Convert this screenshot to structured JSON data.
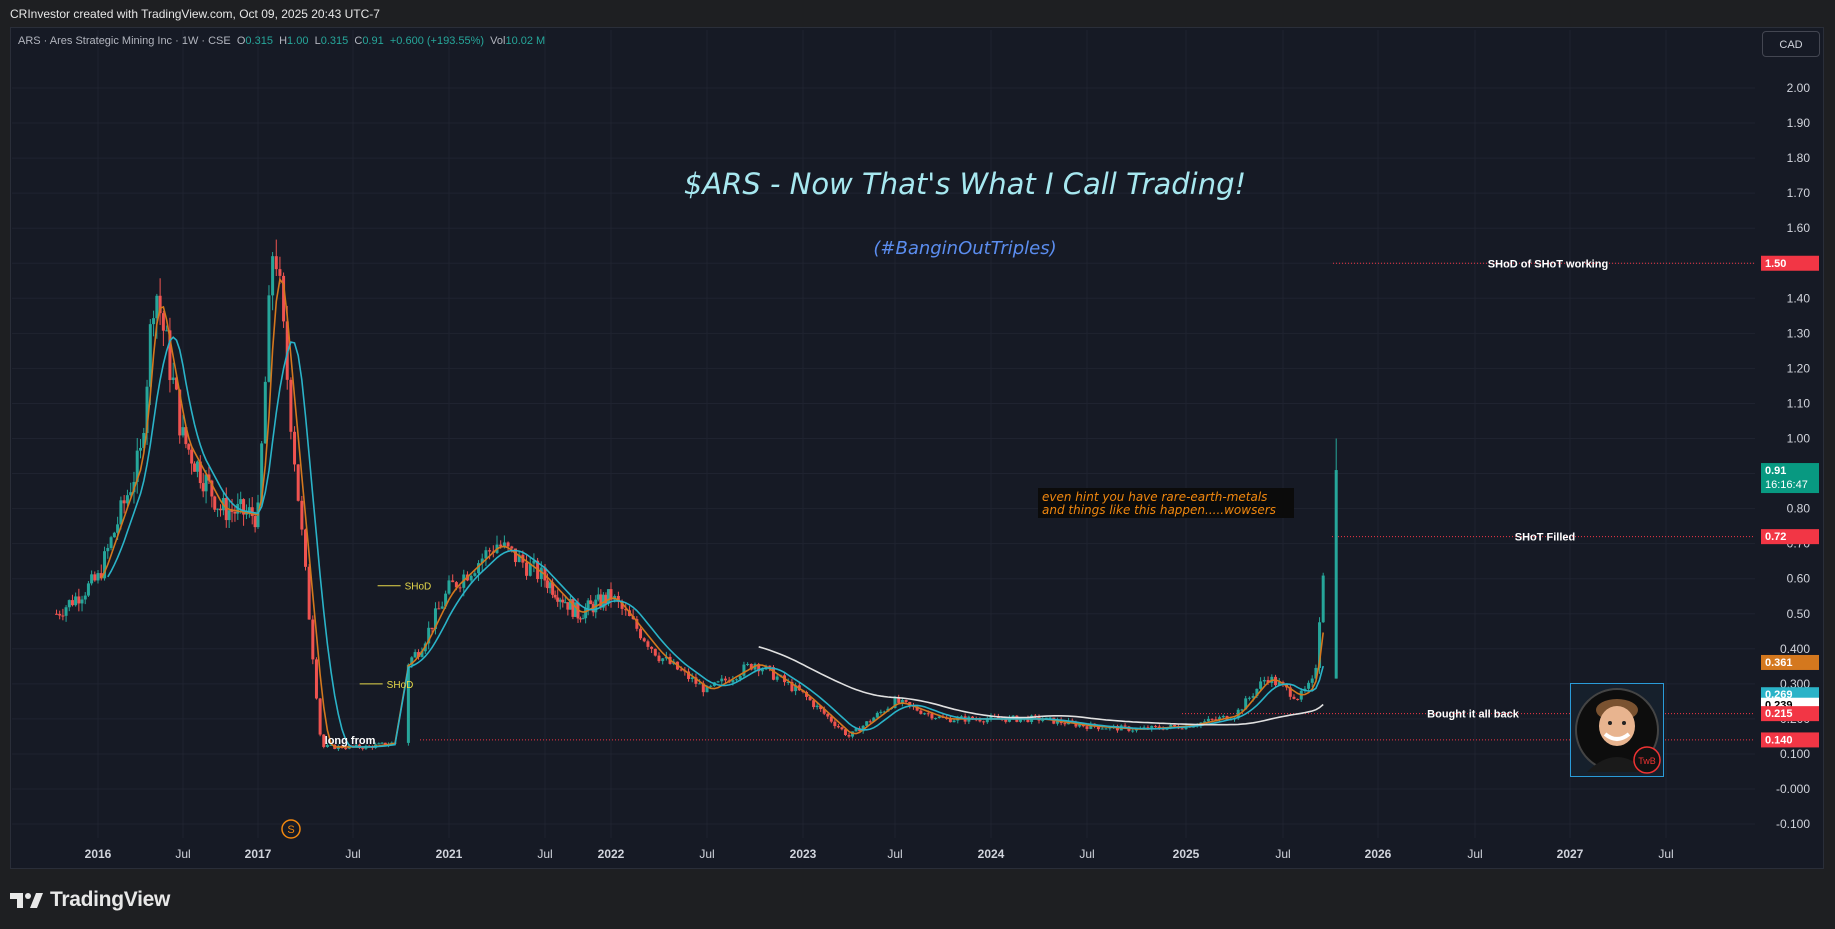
{
  "header": {
    "credit": "CRInvestor created with TradingView.com, Oct 09, 2025 20:43 UTC-7"
  },
  "legend": {
    "symbol_text": "ARS · Ares Strategic Mining Inc · 1W · CSE",
    "o_label": "O",
    "o_value": "0.315",
    "h_label": "H",
    "h_value": "1.00",
    "l_label": "L",
    "l_value": "0.315",
    "c_label": "C",
    "c_value": "0.91",
    "change": "+0.600 (+193.55%)",
    "vol_label": "Vol",
    "vol_value": "10.02 M"
  },
  "currency_button": "CAD",
  "footer": {
    "brand": "TradingView"
  },
  "colors": {
    "background": "#161a25",
    "up": "#26a69a",
    "down": "#ef5350",
    "ma_fast": "#d4781e",
    "ma_slow": "#2ab3c8",
    "ma_long": "#e0e0e0",
    "title": "#a7e8f0",
    "subtitle": "#5b8def"
  },
  "icons": {
    "logo": "tradingview-logo-icon",
    "dividend": "dividend-s-icon",
    "avatar": "twb-avatar-icon"
  },
  "chart_data": {
    "type": "candlestick",
    "timeframe": "1W",
    "title": "$ARS - Now That's What I Call Trading!",
    "subtitle": "(#BanginOutTriples)",
    "xlabel": "",
    "ylabel": "",
    "ylim": [
      -0.12,
      2.1
    ],
    "y_ticks": [
      "2.00",
      "1.90",
      "1.80",
      "1.70",
      "1.60",
      "1.50",
      "1.40",
      "1.30",
      "1.20",
      "1.10",
      "1.00",
      "0.90",
      "0.80",
      "0.70",
      "0.60",
      "0.50",
      "0.400",
      "0.300",
      "0.200",
      "0.100",
      "-0.000",
      "-0.100"
    ],
    "y_tick_values": [
      2.0,
      1.9,
      1.8,
      1.7,
      1.6,
      1.5,
      1.4,
      1.3,
      1.2,
      1.1,
      1.0,
      0.9,
      0.8,
      0.7,
      0.6,
      0.5,
      0.4,
      0.3,
      0.2,
      0.1,
      0.0,
      -0.1
    ],
    "x_ticks": [
      {
        "label": "2016",
        "t": 2016.0
      },
      {
        "label": "Jul",
        "t": 2016.5
      },
      {
        "label": "2017",
        "t": 2017.0
      },
      {
        "label": "Jul",
        "t": 2017.5
      },
      {
        "label": "2021",
        "t": 2021.0
      },
      {
        "label": "Jul",
        "t": 2021.5
      },
      {
        "label": "2022",
        "t": 2022.0
      },
      {
        "label": "Jul",
        "t": 2022.5
      },
      {
        "label": "2023",
        "t": 2023.0
      },
      {
        "label": "Jul",
        "t": 2023.5
      },
      {
        "label": "2024",
        "t": 2024.0
      },
      {
        "label": "Jul",
        "t": 2024.5
      },
      {
        "label": "2025",
        "t": 2025.0
      },
      {
        "label": "Jul",
        "t": 2025.5
      },
      {
        "label": "2026",
        "t": 2026.0
      },
      {
        "label": "Jul",
        "t": 2026.5
      },
      {
        "label": "2027",
        "t": 2027.0
      },
      {
        "label": "Jul",
        "t": 2027.5
      }
    ],
    "price_series": [
      {
        "date": "2015-10",
        "close": 0.5
      },
      {
        "date": "2016-01",
        "close": 0.6
      },
      {
        "date": "2016-04",
        "close": 0.95
      },
      {
        "date": "2016-05",
        "close": 1.45
      },
      {
        "date": "2016-07",
        "close": 1.0
      },
      {
        "date": "2016-10",
        "close": 0.8
      },
      {
        "date": "2017-01",
        "close": 0.78
      },
      {
        "date": "2017-02",
        "close": 1.6
      },
      {
        "date": "2017-03",
        "close": 1.1
      },
      {
        "date": "2017-05",
        "close": 0.12
      },
      {
        "date": "2017-08",
        "close": 0.12
      },
      {
        "date": "2020-10",
        "close": 0.35
      },
      {
        "date": "2020-11",
        "close": 0.4
      },
      {
        "date": "2021-01",
        "close": 0.57
      },
      {
        "date": "2021-04",
        "close": 0.7
      },
      {
        "date": "2021-07",
        "close": 0.6
      },
      {
        "date": "2021-10",
        "close": 0.5
      },
      {
        "date": "2022-01",
        "close": 0.55
      },
      {
        "date": "2022-04",
        "close": 0.38
      },
      {
        "date": "2022-07",
        "close": 0.28
      },
      {
        "date": "2022-10",
        "close": 0.36
      },
      {
        "date": "2023-01",
        "close": 0.27
      },
      {
        "date": "2023-04",
        "close": 0.15
      },
      {
        "date": "2023-07",
        "close": 0.25
      },
      {
        "date": "2023-10",
        "close": 0.2
      },
      {
        "date": "2024-01",
        "close": 0.2
      },
      {
        "date": "2024-04",
        "close": 0.2
      },
      {
        "date": "2024-07",
        "close": 0.18
      },
      {
        "date": "2024-10",
        "close": 0.17
      },
      {
        "date": "2025-01",
        "close": 0.18
      },
      {
        "date": "2025-04",
        "close": 0.21
      },
      {
        "date": "2025-06",
        "close": 0.32
      },
      {
        "date": "2025-08",
        "close": 0.26
      },
      {
        "date": "2025-09",
        "close": 0.31
      },
      {
        "date": "2025-10",
        "close": 0.91
      }
    ],
    "last_candle": {
      "open": 0.315,
      "high": 1.0,
      "low": 0.315,
      "close": 0.91
    },
    "price_labels": [
      {
        "value": 1.5,
        "text": "1.50",
        "color": "#f23645"
      },
      {
        "value": 0.91,
        "text": "0.91",
        "sub": "16:16:47",
        "color": "#089981"
      },
      {
        "value": 0.72,
        "text": "0.72",
        "color": "#f23645"
      },
      {
        "value": 0.361,
        "text": "0.361",
        "color": "#d4781e"
      },
      {
        "value": 0.269,
        "text": "0.269",
        "color": "#2ab3c8"
      },
      {
        "value": 0.239,
        "text": "0.239",
        "color": "#ffffff"
      },
      {
        "value": 0.215,
        "text": "0.215",
        "color": "#f23645"
      },
      {
        "value": 0.14,
        "text": "0.140",
        "color": "#f23645"
      }
    ],
    "horizontal_lines": [
      {
        "value": 1.5,
        "label": "SHoD of SHoT working"
      },
      {
        "value": 0.72,
        "label": "SHoT Filled"
      },
      {
        "value": 0.215,
        "label": "Bought it all back"
      },
      {
        "value": 0.14,
        "label": "long from"
      }
    ],
    "annotations": [
      {
        "text": "SHoD",
        "value": 0.58,
        "t": 2020.85
      },
      {
        "text": "SHoD",
        "value": 0.3,
        "t": 2020.65
      },
      {
        "text": "even hint you have rare-earth-metals",
        "t": 2024.25,
        "value": 0.78
      },
      {
        "text": "and things like this happen.....wowsers",
        "t": 2024.25,
        "value": 0.74
      }
    ],
    "grid": true
  }
}
